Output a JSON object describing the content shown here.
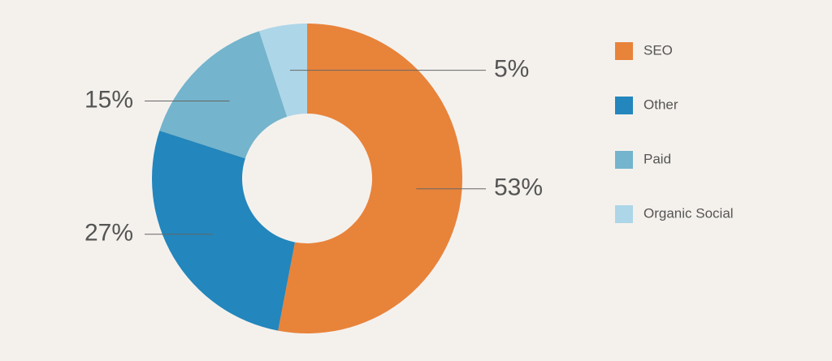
{
  "chart_data": {
    "type": "pie",
    "categories": [
      "SEO",
      "Other",
      "Paid",
      "Organic Social"
    ],
    "values": [
      53,
      27,
      15,
      5
    ],
    "value_labels": [
      "53%",
      "27%",
      "15%",
      "5%"
    ],
    "colors": [
      "#e8833a",
      "#2386bc",
      "#74b4cc",
      "#add6e8"
    ],
    "legend": "right"
  }
}
